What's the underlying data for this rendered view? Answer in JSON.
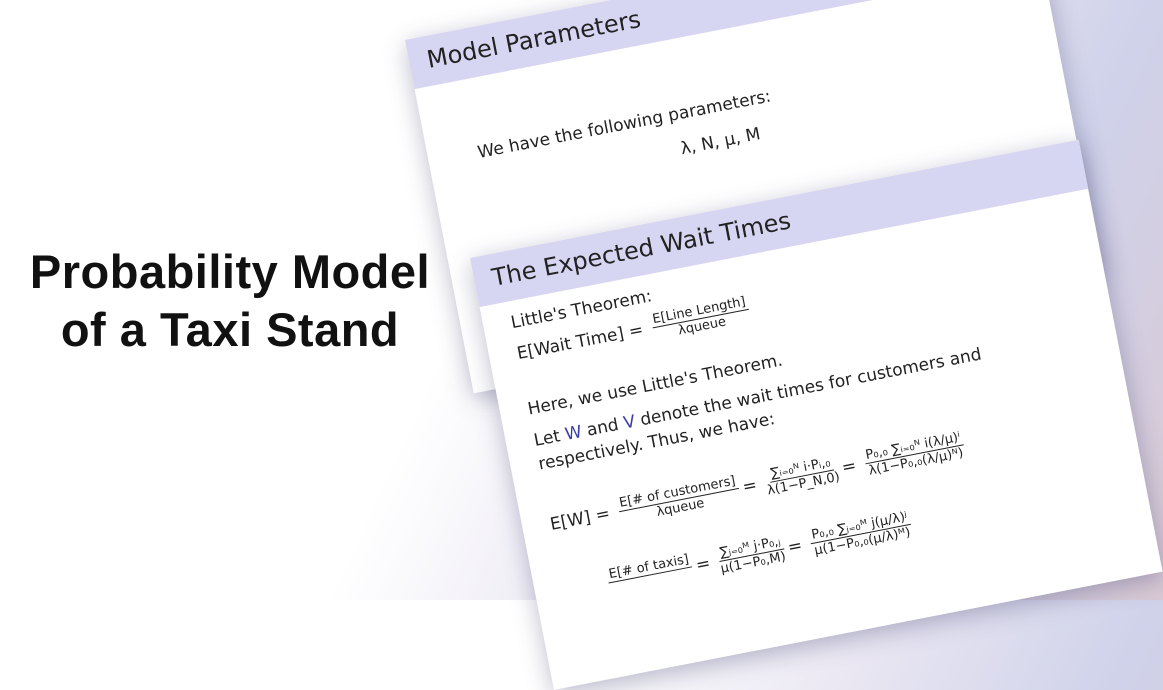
{
  "title": {
    "lines": [
      "Probability Model",
      "of a Taxi Stand"
    ]
  },
  "slides": [
    {
      "title": "Model Parameters",
      "intro": "We have the following parameters:",
      "params": "λ, N, μ, M"
    },
    {
      "title": "The Expected Wait Times",
      "theorem": "Little's Theorem:",
      "little": {
        "lhs": "E[Wait Time] =",
        "num": "E[Line Length]",
        "den": "λqueue"
      },
      "line1": "Here, we use Little's Theorem.",
      "line2": {
        "a": "Let",
        "w": "W",
        "b": "and",
        "v": "V",
        "c": "denote the wait times for customers and"
      },
      "line3": "respectively. Thus, we have:",
      "eq1": {
        "lhs": "E[W] =",
        "f1": {
          "num": "E[# of customers]",
          "den": "λqueue"
        },
        "f2": {
          "num": "∑ᵢ₌₀ᴺ i·Pᵢ,₀",
          "den": "λ(1−P_N,0)"
        },
        "f3": {
          "num": "P₀,₀ ∑ᵢ₌₀ᴺ i(λ/μ)ⁱ",
          "den": "λ(1−P₀,₀(λ/μ)ᴺ)"
        }
      },
      "eq2": {
        "f1": {
          "num": "E[# of taxis]"
        },
        "f2": {
          "num": "∑ⱼ₌₀ᴹ j·P₀,ⱼ",
          "den": "μ(1−P₀,M)"
        },
        "f3": {
          "num": "P₀,₀ ∑ⱼ₌₀ᴹ j(μ/λ)ʲ",
          "den": "μ(1−P₀,₀(μ/λ)ᴹ)"
        }
      }
    }
  ]
}
